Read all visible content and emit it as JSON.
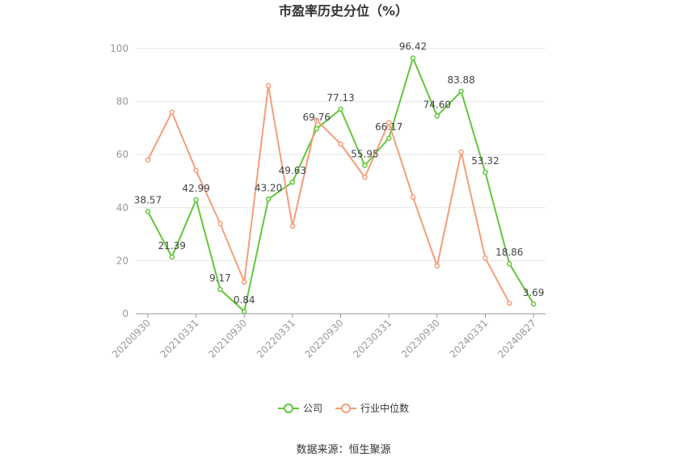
{
  "source": "数据来源：恒生聚源",
  "chart_data": {
    "type": "line",
    "title": "市盈率历史分位（%）",
    "categories": [
      "20200930",
      "",
      "20210331",
      "",
      "20210930",
      "",
      "20220331",
      "",
      "20220930",
      "",
      "20230331",
      "",
      "20230930",
      "",
      "20240331",
      "",
      "20240827"
    ],
    "ylim": [
      0,
      100
    ],
    "yticks": [
      0,
      20,
      40,
      60,
      80,
      100
    ],
    "grid": true,
    "legend_position": "bottom",
    "series": [
      {
        "name": "公司",
        "color": "#62c63c",
        "values": [
          38.57,
          21.39,
          42.99,
          9.17,
          0.84,
          43.2,
          49.63,
          69.76,
          77.13,
          55.95,
          66.17,
          96.42,
          74.6,
          83.88,
          53.32,
          18.86,
          3.69
        ],
        "labels": [
          "38.57",
          "21.39",
          "42.99",
          "9.17",
          "0.84",
          "43.20",
          "49.63",
          "69.76",
          "77.13",
          "55.95",
          "66.17",
          "96.42",
          "74.60",
          "83.88",
          "53.32",
          "18.86",
          "3.69"
        ]
      },
      {
        "name": "行业中位数",
        "color": "#f59d7a",
        "values": [
          58,
          76,
          54,
          34,
          12,
          86,
          33,
          73,
          64,
          51.5,
          72,
          44,
          18,
          61,
          21,
          4,
          null
        ]
      }
    ]
  }
}
